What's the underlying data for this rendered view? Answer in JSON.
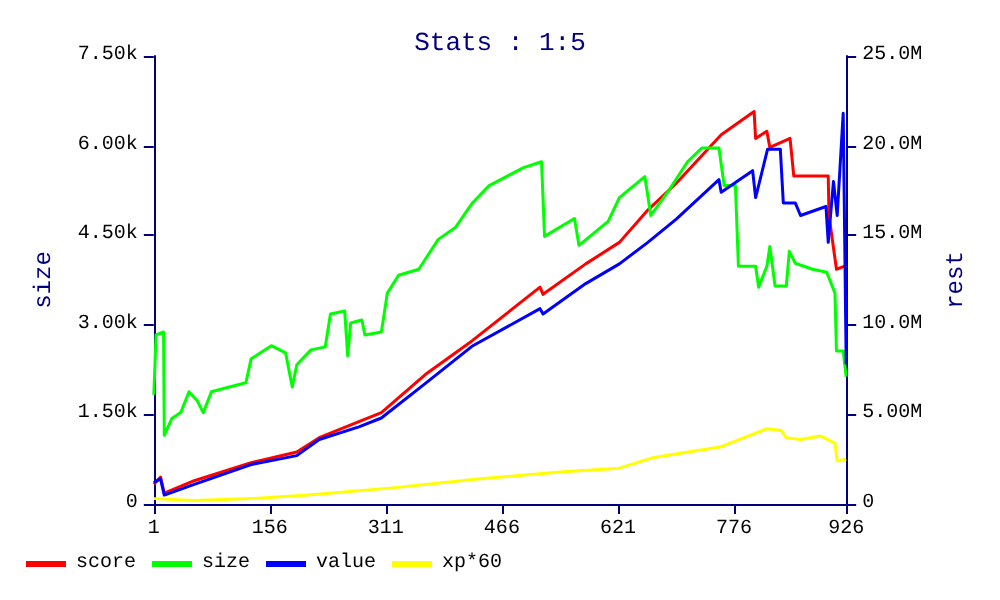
{
  "chart_data": {
    "type": "line",
    "title": "Stats : 1:5",
    "ylabel": "size",
    "y2label": "rest",
    "xlim": [
      1,
      926
    ],
    "xticks": [
      1,
      156,
      311,
      466,
      621,
      776,
      926
    ],
    "ylim": [
      0,
      7500
    ],
    "yticks": [
      0,
      {
        "value": 1500,
        "label": "1.50k"
      },
      {
        "value": 3000,
        "label": "3.00k"
      },
      {
        "value": 4500,
        "label": "4.50k"
      },
      {
        "value": 6000,
        "label": "6.00k"
      },
      {
        "value": 7500,
        "label": "7.50k"
      }
    ],
    "y2lim": [
      0,
      25
    ],
    "y2ticks": [
      0,
      {
        "value": 5,
        "label": "5.00M"
      },
      {
        "value": 10,
        "label": "10.0M"
      },
      {
        "value": 15,
        "label": "15.0M"
      },
      {
        "value": 20,
        "label": "20.0M"
      },
      {
        "value": 25,
        "label": "25.0M"
      }
    ],
    "grid": false,
    "legend": "bottom",
    "marker": "none",
    "line_style": "solid",
    "series": [
      {
        "name": "score",
        "color": "#ff0000",
        "axis": "y2",
        "x": [
          1,
          10,
          15,
          55,
          131,
          192,
          222,
          275,
          305,
          366,
          426,
          517,
          521,
          578,
          623,
          661,
          699,
          759,
          803,
          805,
          820,
          824,
          851,
          856,
          881,
          902,
          903,
          913,
          926
        ],
        "values": [
          1.1,
          1.5,
          0.6,
          1.3,
          2.3,
          2.9,
          3.7,
          4.6,
          5.1,
          7.3,
          9.1,
          12.1,
          11.7,
          13.4,
          14.6,
          16.4,
          17.9,
          20.6,
          21.9,
          20.4,
          20.8,
          19.9,
          20.4,
          18.3,
          18.3,
          18.3,
          16.1,
          13.1,
          13.3
        ]
      },
      {
        "name": "size",
        "color": "#00ff00",
        "axis": "y",
        "x": [
          1,
          4,
          14,
          15,
          25,
          37,
          48,
          59,
          67,
          78,
          93,
          124,
          131,
          158,
          177,
          186,
          192,
          211,
          230,
          237,
          256,
          260,
          264,
          279,
          283,
          305,
          313,
          328,
          355,
          381,
          404,
          426,
          449,
          495,
          519,
          523,
          563,
          569,
          608,
          623,
          657,
          665,
          688,
          714,
          733,
          756,
          763,
          778,
          782,
          805,
          809,
          820,
          824,
          831,
          846,
          850,
          858,
          881,
          900,
          911,
          913,
          922,
          926
        ],
        "values": [
          1830,
          2830,
          2880,
          1150,
          1430,
          1530,
          1880,
          1730,
          1530,
          1880,
          1930,
          2030,
          2430,
          2650,
          2530,
          1960,
          2330,
          2580,
          2630,
          3180,
          3230,
          2480,
          3030,
          3080,
          2830,
          2880,
          3530,
          3830,
          3930,
          4430,
          4630,
          5030,
          5330,
          5630,
          5730,
          4480,
          4780,
          4330,
          4730,
          5130,
          5480,
          4830,
          5230,
          5730,
          5960,
          5960,
          5330,
          5330,
          3980,
          3980,
          3630,
          3980,
          4310,
          3650,
          3650,
          4230,
          4030,
          3930,
          3880,
          3530,
          2560,
          2560,
          2130
        ]
      },
      {
        "name": "value",
        "color": "#0000ff",
        "axis": "y2",
        "x": [
          1,
          10,
          15,
          55,
          131,
          192,
          222,
          275,
          305,
          366,
          426,
          517,
          521,
          578,
          623,
          661,
          699,
          756,
          759,
          801,
          805,
          821,
          838,
          842,
          858,
          865,
          899,
          902,
          909,
          914,
          922,
          926
        ],
        "values": [
          1.2,
          1.4,
          0.5,
          1.1,
          2.2,
          2.7,
          3.6,
          4.3,
          4.8,
          6.8,
          8.8,
          10.9,
          10.6,
          12.3,
          13.4,
          14.6,
          15.9,
          18.1,
          17.4,
          18.6,
          17.1,
          19.8,
          19.8,
          16.8,
          16.8,
          16.1,
          16.6,
          14.6,
          18.0,
          16.1,
          21.8,
          7.8
        ]
      },
      {
        "name": "xp*60",
        "color": "#ffff00",
        "axis": "y2",
        "x": [
          1,
          55,
          131,
          207,
          320,
          434,
          548,
          623,
          669,
          759,
          820,
          839,
          846,
          865,
          891,
          911,
          914,
          926
        ],
        "values": [
          0.3,
          0.2,
          0.3,
          0.5,
          0.9,
          1.4,
          1.8,
          2.0,
          2.6,
          3.2,
          4.2,
          4.1,
          3.7,
          3.6,
          3.8,
          3.4,
          2.4,
          2.5
        ]
      }
    ]
  }
}
